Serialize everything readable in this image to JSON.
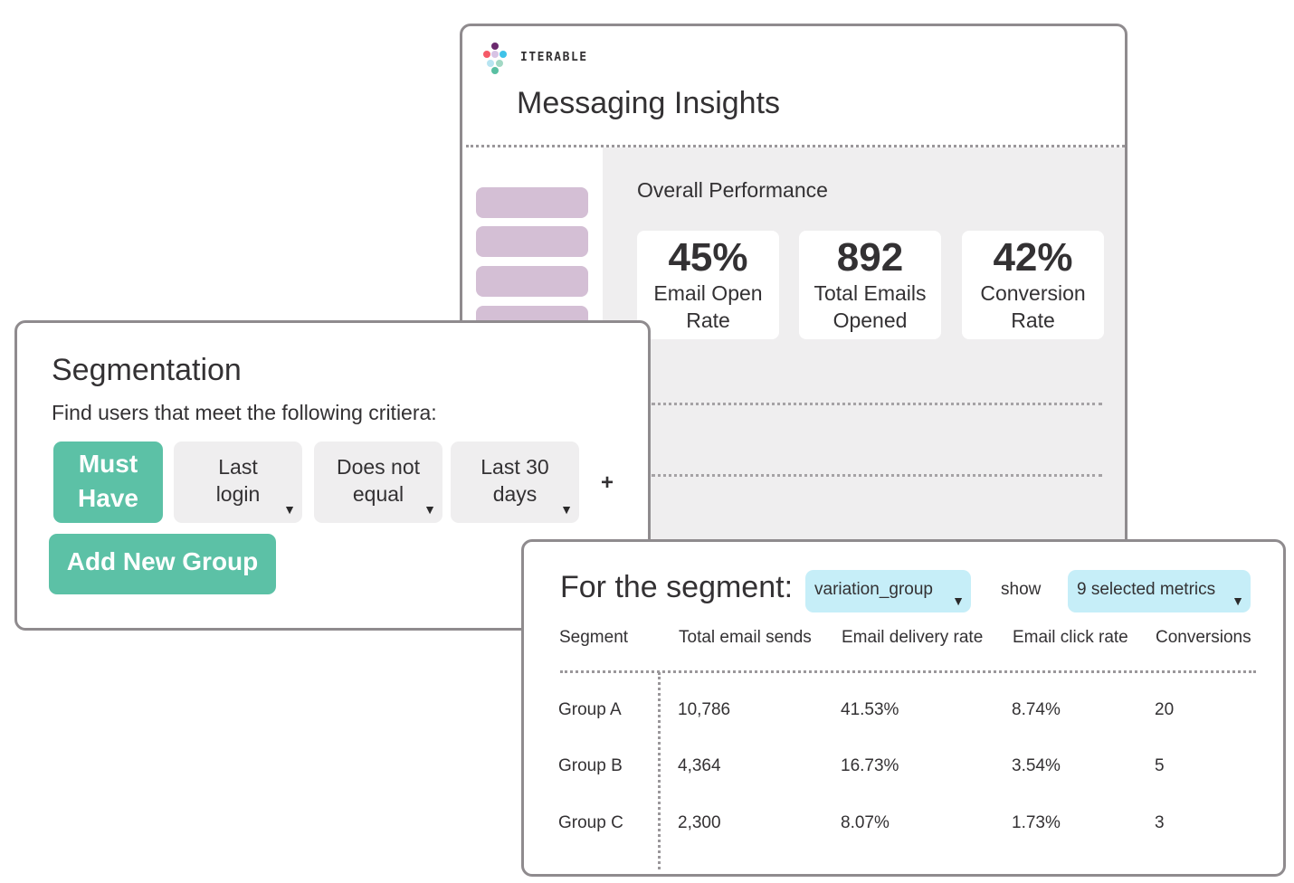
{
  "insights": {
    "brand": "ITERABLE",
    "title": "Messaging Insights",
    "section_title": "Overall Performance",
    "kpis": [
      {
        "value": "45%",
        "label_line1": "Email Open",
        "label_line2": "Rate"
      },
      {
        "value": "892",
        "label_line1": "Total Emails",
        "label_line2": "Opened"
      },
      {
        "value": "42%",
        "label_line1": "Conversion",
        "label_line2": "Rate"
      }
    ]
  },
  "segmentation": {
    "title": "Segmentation",
    "subtitle": "Find users that meet the following critiera:",
    "criteria": {
      "must_line1": "Must",
      "must_line2": "Have",
      "field_line1": "Last",
      "field_line2": "login",
      "operator_line1": "Does not",
      "operator_line2": "equal",
      "range_line1": "Last 30",
      "range_line2": "days"
    },
    "add_criteria": "+",
    "add_group": "Add New Group"
  },
  "segment_table": {
    "heading": "For the segment:",
    "segment_dropdown": "variation_group",
    "show_label": "show",
    "metrics_dropdown": "9 selected metrics",
    "columns": [
      "Segment",
      "Total email sends",
      "Email delivery rate",
      "Email click rate",
      "Conversions"
    ],
    "rows": [
      [
        "Group A",
        "10,786",
        "41.53%",
        "8.74%",
        "20"
      ],
      [
        "Group B",
        "4,364",
        "16.73%",
        "3.54%",
        "5"
      ],
      [
        "Group C",
        "2,300",
        "8.07%",
        "1.73%",
        "3"
      ]
    ]
  },
  "colors": {
    "primary_green": "#5cc1a6",
    "dropdown_blue": "#c6eef8",
    "nav_purple": "#d4bfd5",
    "panel_gray": "#efeeef",
    "border_gray": "#8f8b8e"
  },
  "icons": {
    "logo": "iterable-logo-icon",
    "dropdown": "caret-down-icon"
  }
}
